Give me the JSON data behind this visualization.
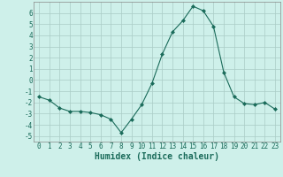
{
  "x": [
    0,
    1,
    2,
    3,
    4,
    5,
    6,
    7,
    8,
    9,
    10,
    11,
    12,
    13,
    14,
    15,
    16,
    17,
    18,
    19,
    20,
    21,
    22,
    23
  ],
  "y": [
    -1.5,
    -1.8,
    -2.5,
    -2.8,
    -2.8,
    -2.9,
    -3.1,
    -3.5,
    -4.7,
    -3.5,
    -2.2,
    -0.3,
    2.3,
    4.3,
    5.3,
    6.6,
    6.2,
    4.8,
    0.7,
    -1.5,
    -2.1,
    -2.2,
    -2.0,
    -2.6
  ],
  "line_color": "#1a6b5a",
  "marker": "D",
  "marker_size": 2.0,
  "bg_color": "#cef0ea",
  "grid_color": "#aaccc6",
  "xlabel": "Humidex (Indice chaleur)",
  "ylim": [
    -5.5,
    7.0
  ],
  "xlim": [
    -0.5,
    23.5
  ],
  "yticks": [
    -5,
    -4,
    -3,
    -2,
    -1,
    0,
    1,
    2,
    3,
    4,
    5,
    6
  ],
  "xticks": [
    0,
    1,
    2,
    3,
    4,
    5,
    6,
    7,
    8,
    9,
    10,
    11,
    12,
    13,
    14,
    15,
    16,
    17,
    18,
    19,
    20,
    21,
    22,
    23
  ],
  "tick_label_fontsize": 5.5,
  "xlabel_fontsize": 7.0,
  "tick_color": "#1a6b5a",
  "spine_color": "#888888"
}
